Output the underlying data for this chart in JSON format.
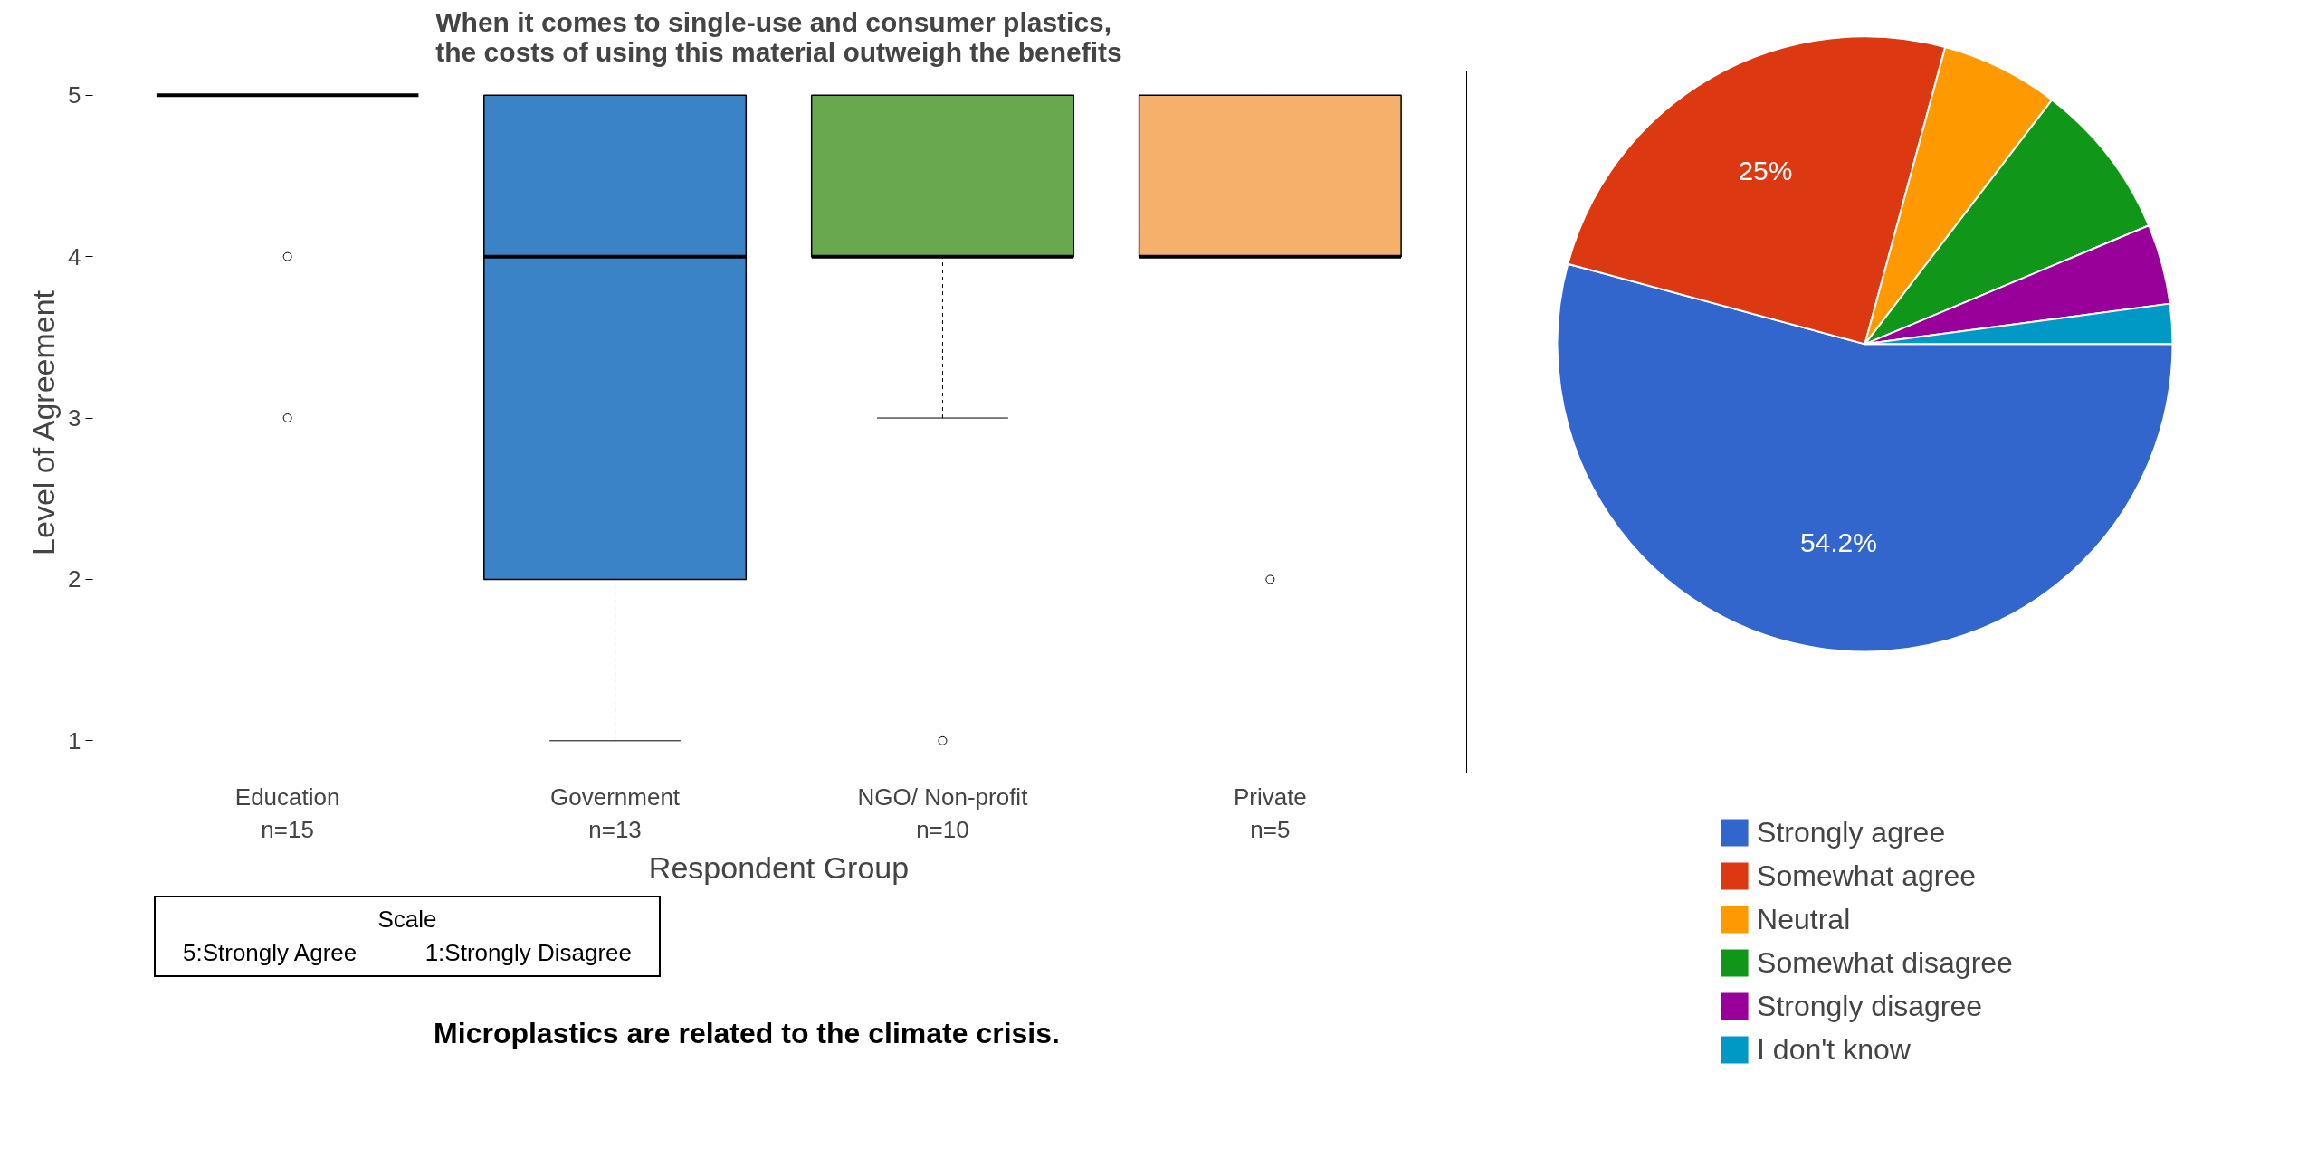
{
  "chart_data": [
    {
      "type": "box",
      "title": "When it comes to single-use and consumer plastics,\nthe costs of using this material outweigh the benefits",
      "xlabel": "Respondent Group",
      "ylabel": "Level of Agreement",
      "categories": [
        "Education\nn=15",
        "Government\nn=13",
        "NGO/ Non-profit\nn=10",
        "Private\nn=5"
      ],
      "colors": [
        null,
        "#3a83c6",
        "#69a84f",
        "#f5b06b"
      ],
      "boxes": [
        {
          "low": 5,
          "q1": 5,
          "median": 5,
          "q3": 5,
          "high": 5,
          "outliers": [
            4,
            3
          ]
        },
        {
          "low": 1,
          "q1": 2,
          "median": 4,
          "q3": 5,
          "high": 5
        },
        {
          "low": 3,
          "q1": 4,
          "median": 4,
          "q3": 5,
          "high": 5,
          "outliers": [
            1
          ]
        },
        {
          "low": 4,
          "q1": 4,
          "median": 4,
          "q3": 5,
          "high": 5,
          "outliers": [
            2
          ]
        }
      ],
      "ylim": [
        0.8,
        5.15
      ],
      "yticks": [
        1,
        2,
        3,
        4,
        5
      ],
      "grid": false,
      "annotations": [
        "Scale",
        "5:Strongly Agree",
        "1:Strongly Disagree",
        "Microplastics are related to the climate crisis."
      ]
    },
    {
      "type": "pie",
      "categories": [
        "Strongly agree",
        "Somewhat agree",
        "Neutral",
        "Somewhat disagree",
        "Strongly disagree",
        "I don't know"
      ],
      "values": [
        54.2,
        25,
        6.2,
        8.3,
        4.2,
        2.1
      ],
      "colors": [
        "#3366cc",
        "#dc3912",
        "#ff9900",
        "#109618",
        "#990099",
        "#0099c6"
      ],
      "value_labels": [
        "54.2%",
        "25%",
        null,
        null,
        null,
        null
      ],
      "legend": "bottom"
    }
  ]
}
